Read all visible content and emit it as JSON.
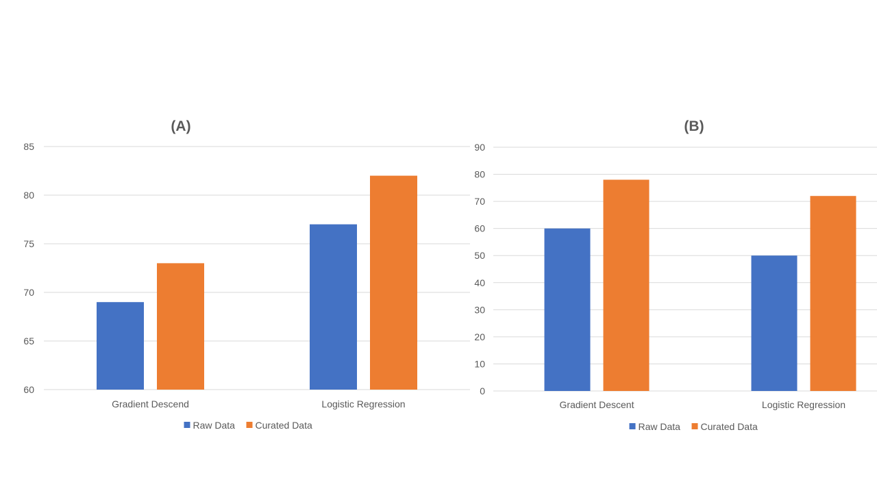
{
  "colors": {
    "raw": "#4472c4",
    "curated": "#ed7d31",
    "grid": "#d9d9d9",
    "text": "#595959"
  },
  "chart_data": [
    {
      "type": "bar",
      "title": "(A)",
      "categories": [
        "Gradient Descend",
        "Logistic Regression"
      ],
      "series": [
        {
          "name": "Raw Data",
          "values": [
            69,
            77
          ]
        },
        {
          "name": "Curated Data",
          "values": [
            73,
            82
          ]
        }
      ],
      "ylim": [
        60,
        85
      ],
      "yticks": [
        60,
        65,
        70,
        75,
        80,
        85
      ],
      "xlabel": "",
      "ylabel": "",
      "grid": true,
      "legend": "bottom"
    },
    {
      "type": "bar",
      "title": "(B)",
      "categories": [
        "Gradient Descent",
        "Logistic Regression"
      ],
      "series": [
        {
          "name": "Raw Data",
          "values": [
            60,
            50
          ]
        },
        {
          "name": "Curated Data",
          "values": [
            78,
            72
          ]
        }
      ],
      "ylim": [
        0,
        90
      ],
      "yticks": [
        0,
        10,
        20,
        30,
        40,
        50,
        60,
        70,
        80,
        90
      ],
      "xlabel": "",
      "ylabel": "",
      "grid": true,
      "legend": "bottom"
    }
  ]
}
